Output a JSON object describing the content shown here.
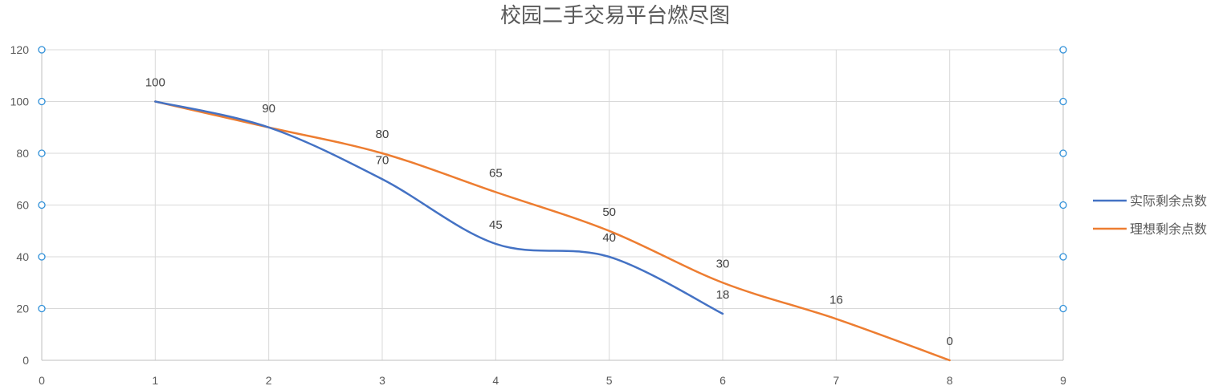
{
  "chart_data": {
    "type": "line",
    "title": "校园二手交易平台燃尽图",
    "xlabel": "",
    "ylabel": "",
    "xlim": [
      0,
      9
    ],
    "ylim": [
      0,
      120
    ],
    "x_ticks": [
      "0",
      "1",
      "2",
      "3",
      "4",
      "5",
      "6",
      "7",
      "8",
      "9"
    ],
    "y_ticks": [
      "0",
      "20",
      "40",
      "60",
      "80",
      "100",
      "120"
    ],
    "grid": true,
    "smooth": true,
    "legend_position": "right",
    "series": [
      {
        "name": "实际剩余点数",
        "color": "#4472c4",
        "points": [
          [
            1,
            100
          ],
          [
            2,
            90
          ],
          [
            3,
            70
          ],
          [
            4,
            45
          ],
          [
            5,
            40
          ],
          [
            6,
            18
          ]
        ]
      },
      {
        "name": "理想剩余点数",
        "color": "#ed7d31",
        "points": [
          [
            1,
            100
          ],
          [
            2,
            90
          ],
          [
            3,
            80
          ],
          [
            4,
            65
          ],
          [
            5,
            50
          ],
          [
            6,
            30
          ],
          [
            7,
            16
          ],
          [
            8,
            0
          ]
        ]
      }
    ]
  }
}
